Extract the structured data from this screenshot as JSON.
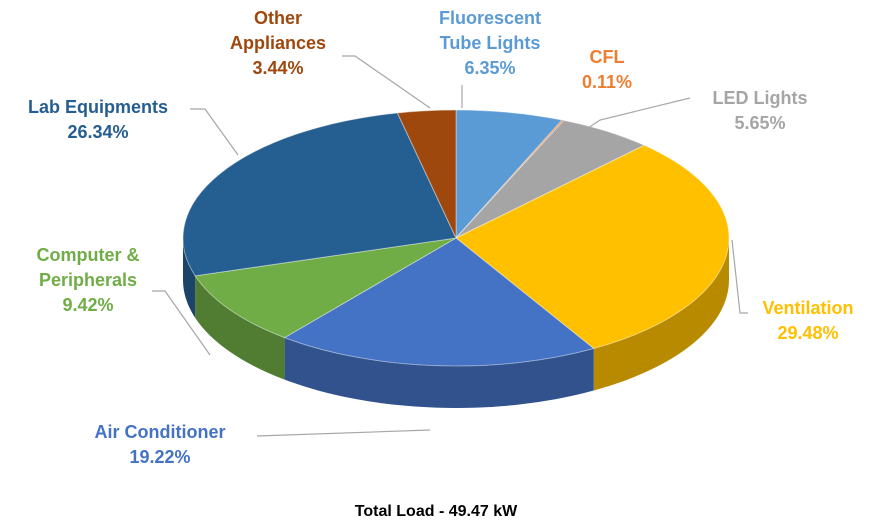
{
  "chart_data": {
    "type": "pie",
    "title": "Total Load - 49.47 kW",
    "categories": [
      "Fluorescent Tube Lights",
      "CFL",
      "LED Lights",
      "Ventilation",
      "Air Conditioner",
      "Computer & Peripherals",
      "Lab Equipments",
      "Other Appliances"
    ],
    "values": [
      6.35,
      0.11,
      5.65,
      29.48,
      19.22,
      9.42,
      26.34,
      3.44
    ],
    "value_labels": [
      "6.35%",
      "0.11%",
      "5.65%",
      "29.48%",
      "19.22%",
      "9.42%",
      "26.34%",
      "3.44%"
    ],
    "colors": [
      "#5b9bd5",
      "#ed7d31",
      "#a5a5a5",
      "#ffc000",
      "#4472c4",
      "#70ad47",
      "#255e91",
      "#9e480e"
    ]
  }
}
